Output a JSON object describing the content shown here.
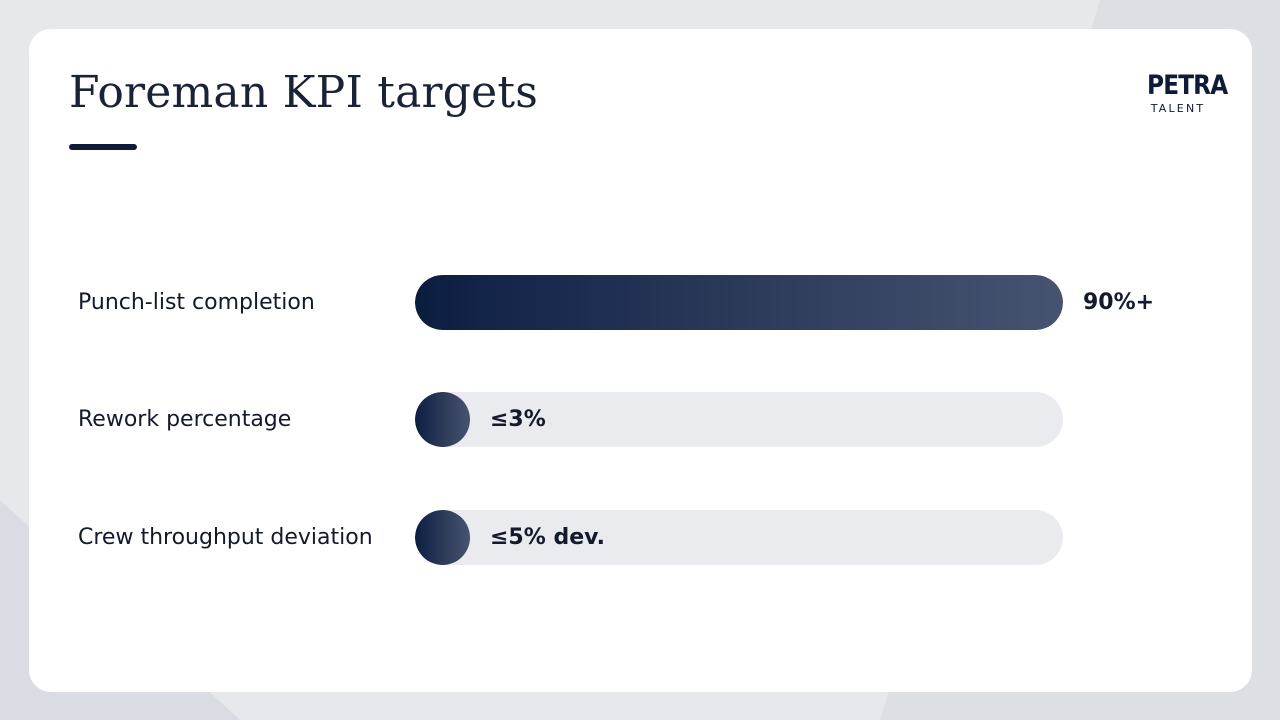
{
  "slide": {
    "title": "Foreman KPI targets",
    "logo": {
      "name": "PETRA",
      "tagline": "TALENT"
    }
  },
  "chart_data": {
    "type": "bar",
    "orientation": "horizontal",
    "categories": [
      "Punch-list completion",
      "Rework percentage",
      "Crew throughput deviation"
    ],
    "values": [
      90,
      3,
      5
    ],
    "value_labels": [
      "90%+",
      "≤3%",
      "≤5% dev."
    ],
    "xlim": [
      0,
      90
    ],
    "grid": false,
    "colors": {
      "fill": "#1f2f50",
      "track": "#eaebef"
    }
  }
}
